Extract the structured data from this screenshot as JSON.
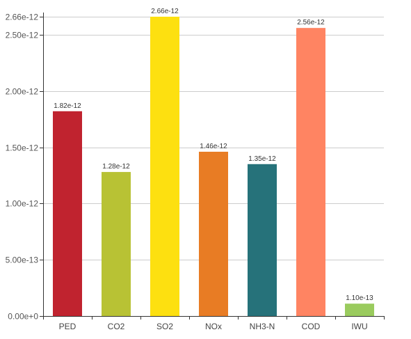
{
  "chart_data": {
    "type": "bar",
    "categories": [
      "PED",
      "CO2",
      "SO2",
      "NOx",
      "NH3-N",
      "COD",
      "IWU"
    ],
    "values": [
      1.82e-12,
      1.28e-12,
      2.66e-12,
      1.46e-12,
      1.35e-12,
      2.56e-12,
      1.1e-13
    ],
    "value_labels": [
      "1.82e-12",
      "1.28e-12",
      "2.66e-12",
      "1.46e-12",
      "1.35e-12",
      "2.56e-12",
      "1.10e-13"
    ],
    "colors": [
      "#c0232f",
      "#b8c234",
      "#fde010",
      "#e87c24",
      "#26727a",
      "#ff8462",
      "#9acb5e"
    ],
    "ylim": [
      0,
      2.66e-12
    ],
    "yticks": [
      0,
      5e-13,
      1e-12,
      1.5e-12,
      2e-12,
      2.5e-12,
      2.66e-12
    ],
    "ytick_labels": [
      "0.00e+0",
      "5.00e-13",
      "1.00e-12",
      "1.50e-12",
      "2.00e-12",
      "2.50e-12",
      "2.66e-12"
    ],
    "grid": true,
    "title": "",
    "xlabel": "",
    "ylabel": ""
  }
}
